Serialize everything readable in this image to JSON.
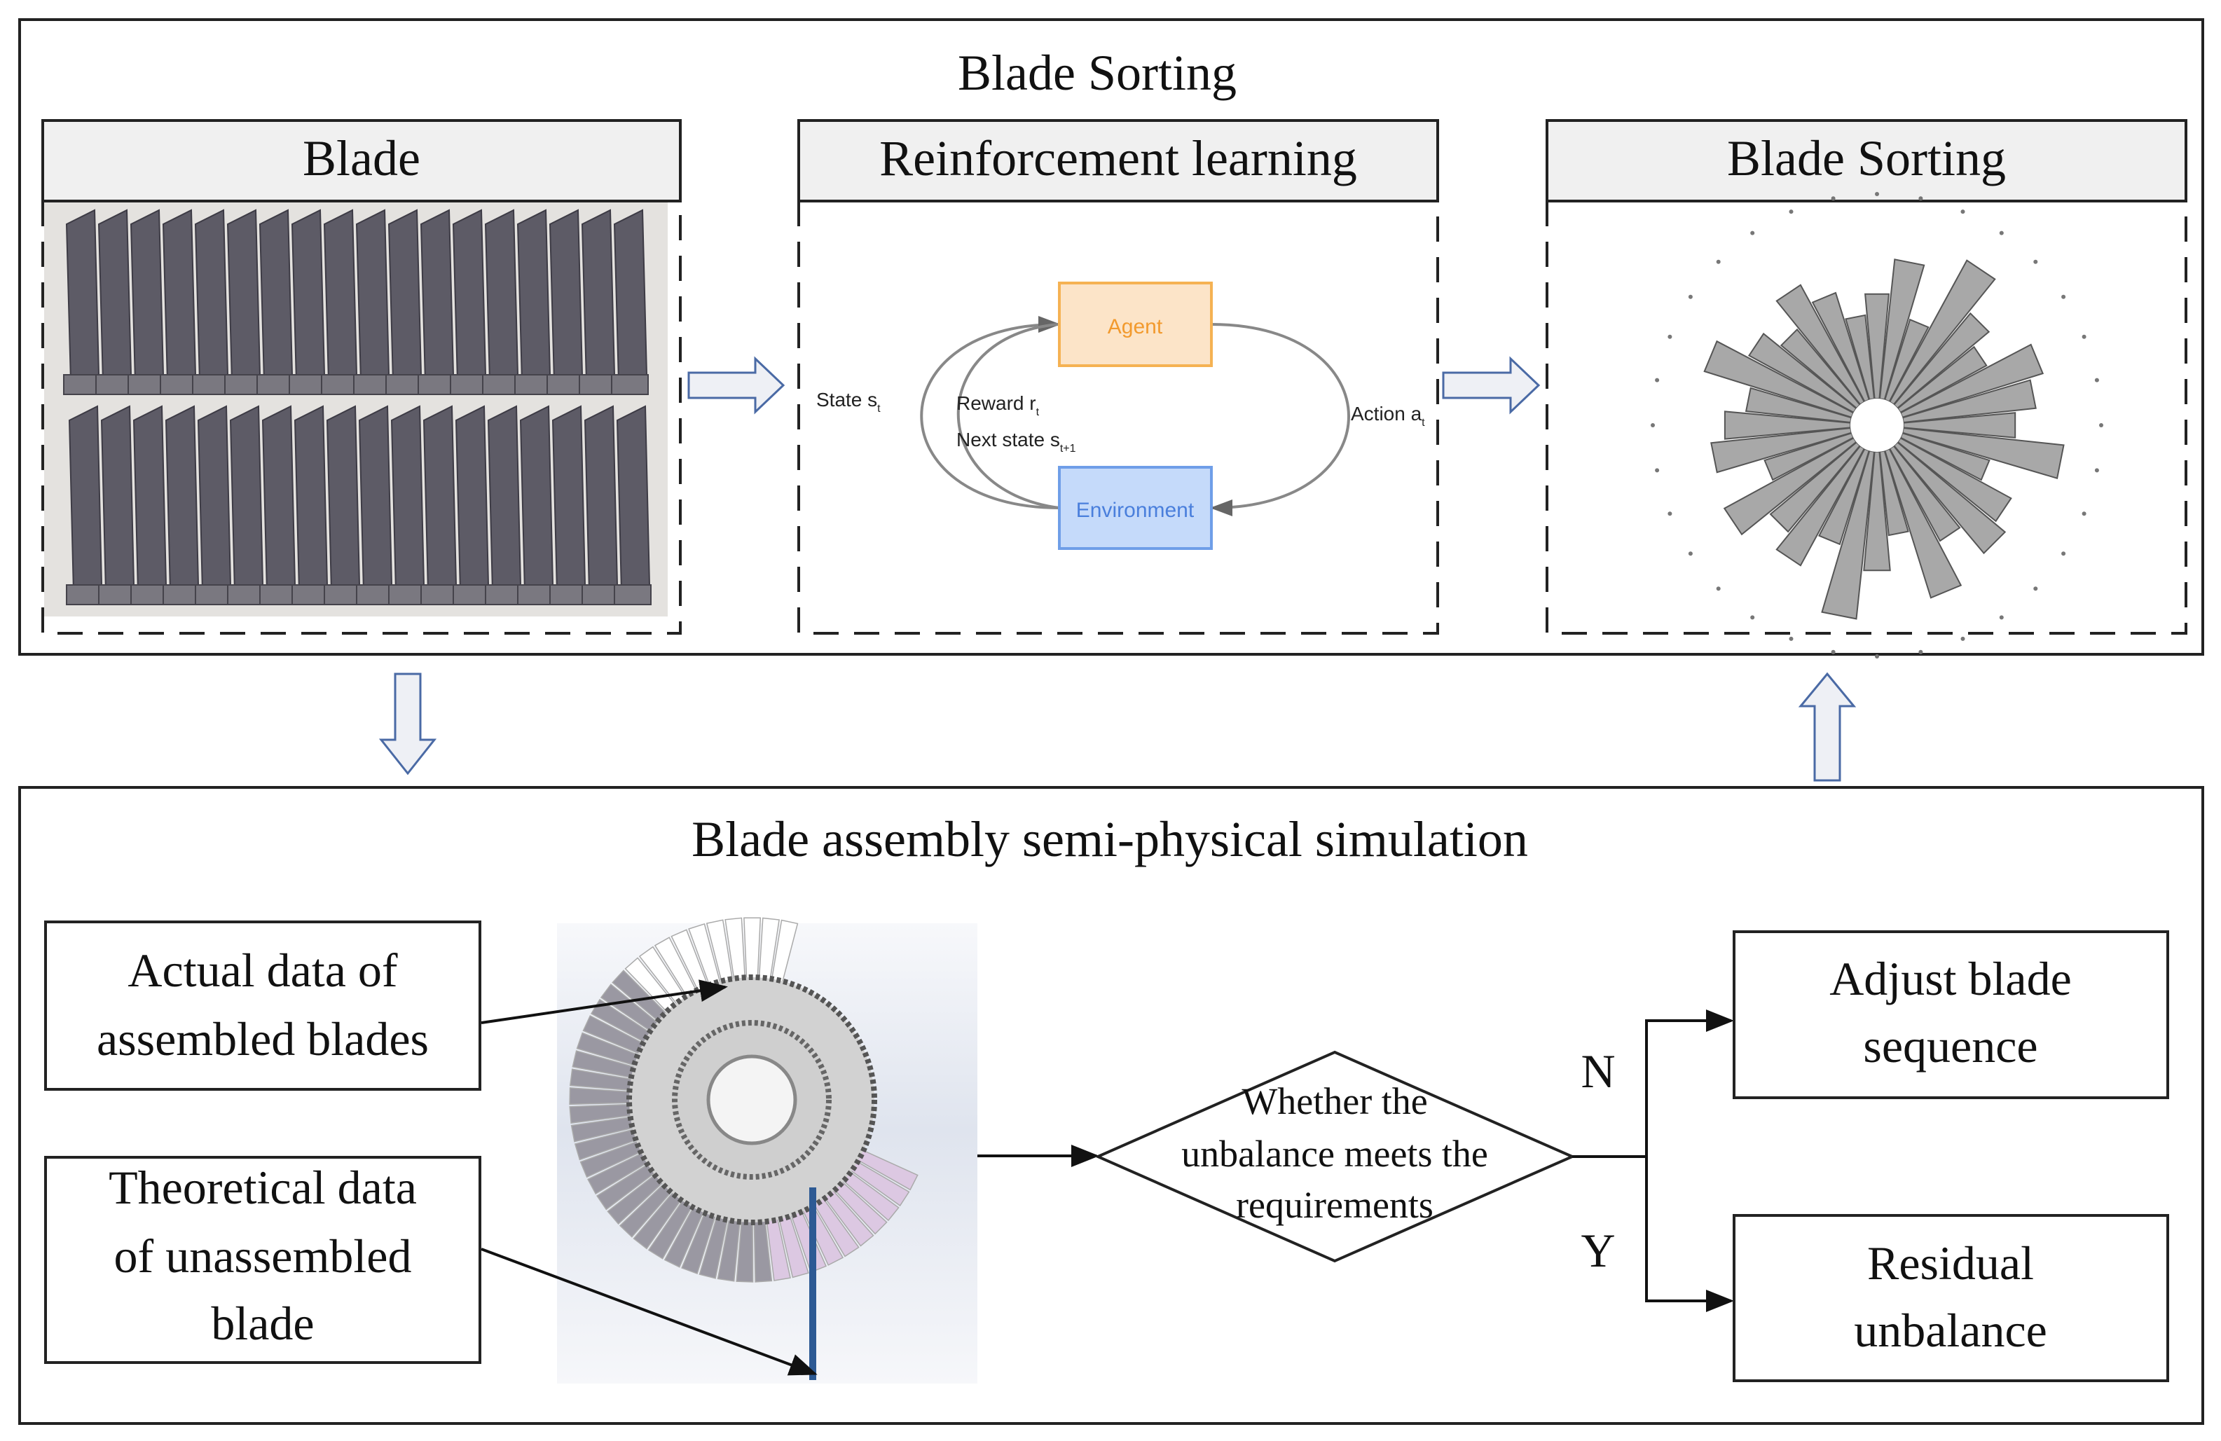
{
  "top_section": {
    "title": "Blade Sorting",
    "panels": [
      {
        "header": "Blade"
      },
      {
        "header": "Reinforcement learning"
      },
      {
        "header": "Blade Sorting"
      }
    ],
    "rl_diagram": {
      "agent": "Agent",
      "environment": "Environment",
      "state": "State s",
      "state_sub": "t",
      "reward": "Reward r",
      "reward_sub": "t",
      "next_state": "Next state s",
      "next_state_sub": "t+1",
      "action": "Action a",
      "action_sub": "t",
      "agent_color": "#fce4c8",
      "agent_border": "#f5b253",
      "agent_text_color": "#f29a2e",
      "environment_color": "#c5dafa",
      "environment_border": "#6f9ee8",
      "environment_text_color": "#4a7fdc"
    }
  },
  "bottom_section": {
    "title": "Blade assembly semi-physical simulation",
    "actual_data_box": [
      "Actual data of",
      "assembled blades"
    ],
    "theoretical_data_box": [
      "Theoretical data",
      "of unassembled",
      "blade"
    ],
    "decision": [
      "Whether the",
      "unbalance meets the",
      "requirements"
    ],
    "no_label": "N",
    "yes_label": "Y",
    "adjust_box": [
      "Adjust blade",
      "sequence"
    ],
    "residual_box": [
      "Residual",
      "unbalance"
    ]
  },
  "colors": {
    "arrow_fill": "#eef0f5",
    "arrow_stroke": "#4a6aa5",
    "header_fill": "#f0f0f0"
  }
}
